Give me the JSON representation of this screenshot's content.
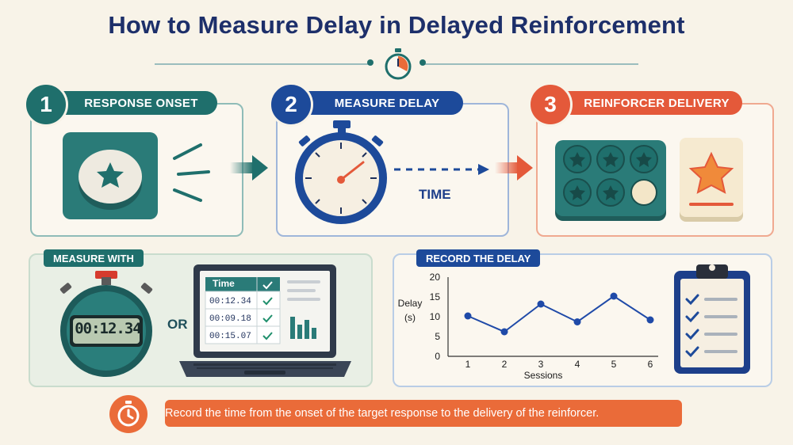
{
  "title": "How to Measure Delay in Delayed Reinforcement",
  "steps": [
    {
      "number": "1",
      "label": "RESPONSE ONSET",
      "color": "#1f6f6c"
    },
    {
      "number": "2",
      "label": "MEASURE DELAY",
      "color": "#1d4a9a"
    },
    {
      "number": "3",
      "label": "REINFORCER DELIVERY",
      "color": "#e4593a"
    }
  ],
  "time_label": "TIME",
  "measure_with": {
    "tag": "MEASURE WITH",
    "stopwatch_display": "00:12.34",
    "or_label": "OR",
    "table_header": "Time",
    "table_rows": [
      "00:12.34",
      "00:09.18",
      "00:15.07"
    ]
  },
  "record": {
    "tag": "RECORD THE DELAY",
    "chart_data": {
      "type": "line",
      "x": [
        1,
        2,
        3,
        4,
        5,
        6
      ],
      "values": [
        11,
        7,
        14,
        9.5,
        16,
        10
      ],
      "xlabel": "Sessions",
      "ylabel_line1": "Delay",
      "ylabel_line2": "(s)",
      "yticks": [
        "0",
        "5",
        "10",
        "15",
        "20"
      ],
      "xticks": [
        "1",
        "2",
        "3",
        "4",
        "5",
        "6"
      ],
      "ylim": [
        0,
        20
      ],
      "color": "#1f4aa8"
    }
  },
  "footer_text": "Record the time from the onset of the target response to the delivery of the reinforcer.",
  "colors": {
    "teal": "#1f6f6c",
    "navy": "#1d4a9a",
    "orange": "#e4593a",
    "background": "#f8f3e8"
  },
  "icons": [
    "stopwatch-icon",
    "star-button-icon",
    "arrow-right-icon",
    "token-board-icon",
    "star-card-icon",
    "digital-stopwatch-icon",
    "laptop-icon",
    "clipboard-icon"
  ]
}
